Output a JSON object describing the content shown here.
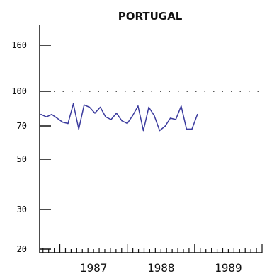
{
  "chart_data": {
    "type": "line",
    "title": "PORTUGAL",
    "xlabel": "",
    "ylabel": "",
    "scale": "log",
    "ylim": [
      20,
      200
    ],
    "xlim": [
      1986.7,
      1990.0
    ],
    "y_ticks": [
      "160",
      "100",
      "70",
      "50",
      "30",
      "20"
    ],
    "x_ticks": [
      "1987",
      "1988",
      "1989"
    ],
    "reference_line": 100,
    "series": [
      {
        "color": "#3b3b9e",
        "points": [
          [
            1986.72,
            79
          ],
          [
            1986.8,
            77
          ],
          [
            1986.88,
            79
          ],
          [
            1986.96,
            76
          ],
          [
            1987.04,
            73
          ],
          [
            1987.12,
            72
          ],
          [
            1987.2,
            88
          ],
          [
            1987.28,
            68
          ],
          [
            1987.36,
            87
          ],
          [
            1987.44,
            85
          ],
          [
            1987.52,
            80
          ],
          [
            1987.6,
            85
          ],
          [
            1987.68,
            77
          ],
          [
            1987.76,
            75
          ],
          [
            1987.84,
            80
          ],
          [
            1987.92,
            74
          ],
          [
            1988.0,
            72
          ],
          [
            1988.08,
            78
          ],
          [
            1988.16,
            86
          ],
          [
            1988.24,
            67
          ],
          [
            1988.32,
            85
          ],
          [
            1988.4,
            78
          ],
          [
            1988.48,
            67
          ],
          [
            1988.56,
            70
          ],
          [
            1988.64,
            76
          ],
          [
            1988.72,
            75
          ],
          [
            1988.8,
            86
          ],
          [
            1988.88,
            68
          ],
          [
            1988.96,
            68
          ],
          [
            1989.04,
            79
          ]
        ]
      }
    ]
  }
}
